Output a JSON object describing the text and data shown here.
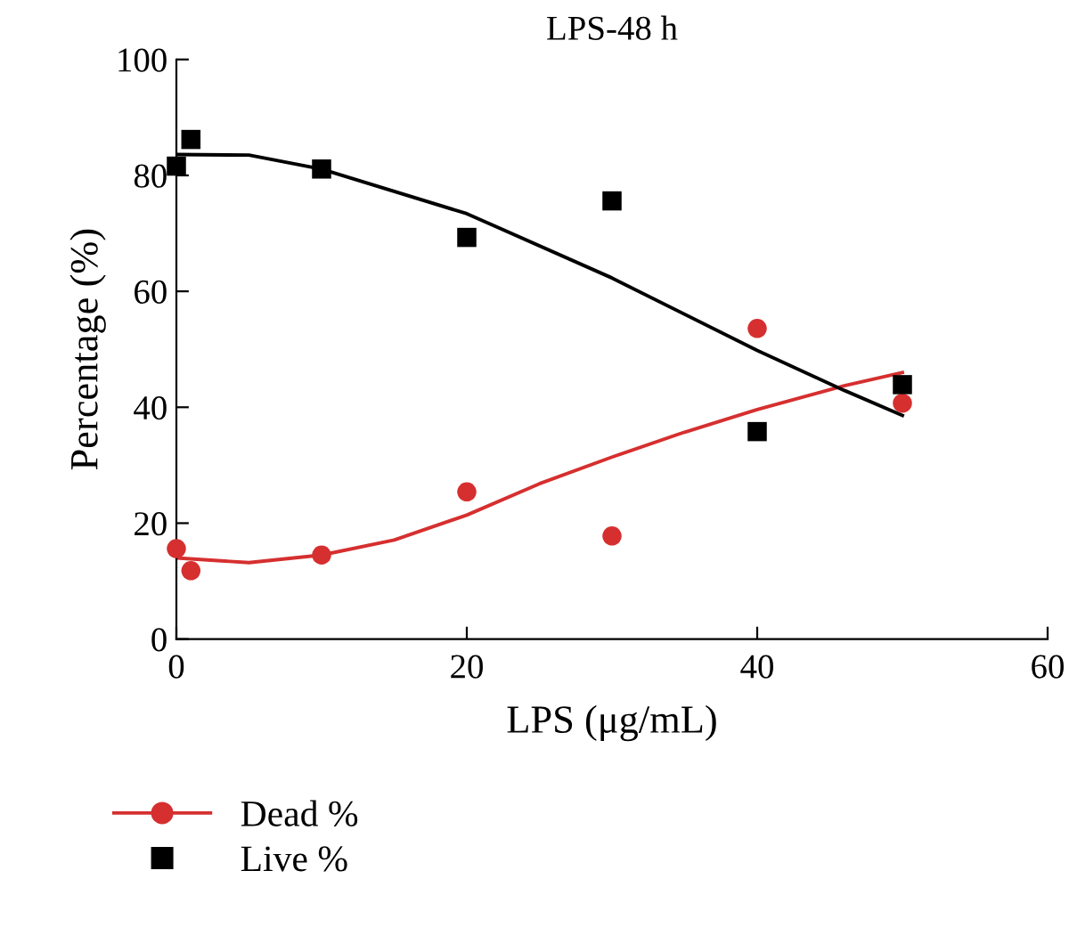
{
  "chart_data": {
    "type": "scatter",
    "title": "LPS-48 h",
    "xlabel": "LPS (μg/mL)",
    "ylabel": "Percentage (%)",
    "xlim": [
      0,
      60
    ],
    "xticks": [
      0,
      20,
      40,
      60
    ],
    "ylim": [
      0,
      100
    ],
    "yticks": [
      0,
      20,
      40,
      60,
      80,
      100
    ],
    "grid": false,
    "legend": "bottom left",
    "series": [
      {
        "name": "Dead %",
        "marker": "circle",
        "color": "#d62f2f",
        "x": [
          0,
          1,
          10,
          20,
          30,
          40,
          50
        ],
        "values": [
          15.6,
          11.8,
          14.5,
          25.4,
          17.8,
          53.6,
          40.7
        ]
      },
      {
        "name": "Live %",
        "marker": "square",
        "color": "#000000",
        "x": [
          0,
          1,
          10,
          20,
          30,
          40,
          50
        ],
        "values": [
          81.6,
          86.2,
          81.1,
          69.3,
          75.6,
          35.8,
          43.9
        ]
      },
      {
        "type": "line",
        "marker": "none",
        "color": "#d62f2f",
        "x": [
          0,
          5,
          10,
          15,
          20,
          25,
          30,
          35,
          40,
          46,
          50
        ],
        "values": [
          14.0,
          13.2,
          14.5,
          17.1,
          21.4,
          26.8,
          31.4,
          35.7,
          39.6,
          43.7,
          46.0
        ]
      },
      {
        "type": "line",
        "marker": "none",
        "color": "#000000",
        "x": [
          0,
          5,
          10,
          20,
          30,
          40,
          46,
          50
        ],
        "values": [
          83.6,
          83.5,
          81.1,
          73.4,
          62.3,
          49.8,
          42.9,
          38.6
        ]
      }
    ]
  }
}
